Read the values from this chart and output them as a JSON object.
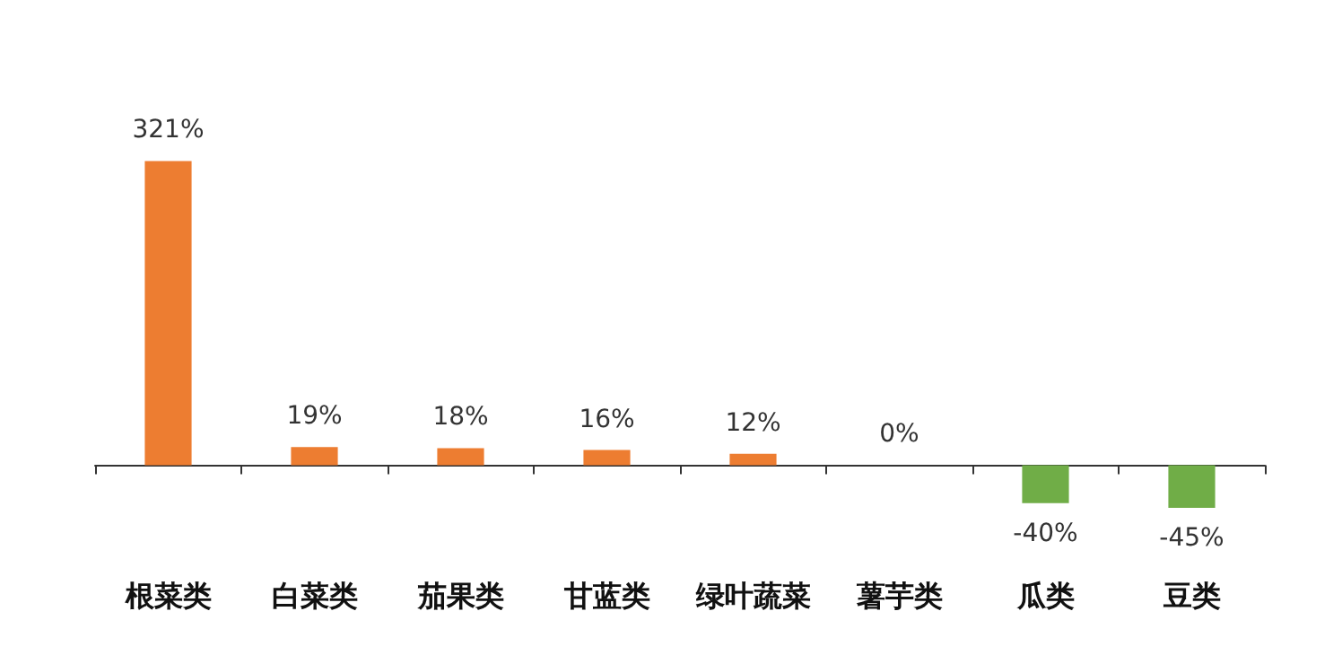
{
  "chart_data": {
    "type": "bar",
    "categories": [
      "根菜类",
      "白菜类",
      "茄果类",
      "甘蓝类",
      "绿叶蔬菜",
      "薯芋类",
      "瓜类",
      "豆类"
    ],
    "values": [
      321,
      19,
      18,
      16,
      12,
      0,
      -40,
      -45
    ],
    "colors": [
      "#ed7d31",
      "#ed7d31",
      "#ed7d31",
      "#ed7d31",
      "#ed7d31",
      "#ed7d31",
      "#70ad47",
      "#70ad47"
    ],
    "value_labels": [
      "321%",
      "19%",
      "18%",
      "16%",
      "12%",
      "0%",
      "-40%",
      "-45%"
    ]
  }
}
